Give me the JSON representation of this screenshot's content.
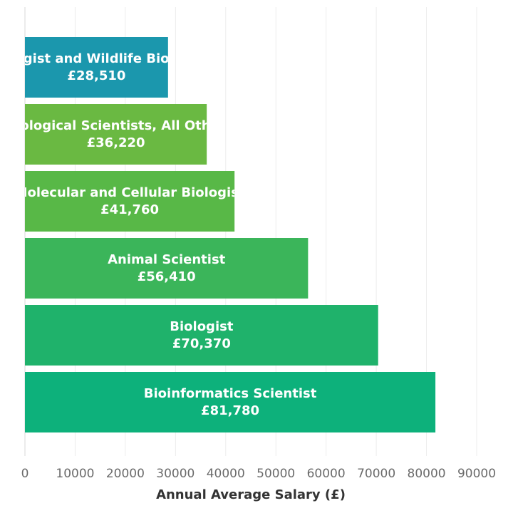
{
  "chart_data": {
    "type": "bar",
    "orientation": "horizontal",
    "categories": [
      "Zoologist and Wildlife Biologist",
      "Biological Scientists, All Other",
      "Molecular and Cellular Biologist",
      "Animal Scientist",
      "Biologist",
      "Bioinformatics Scientist"
    ],
    "values": [
      28510,
      36220,
      41760,
      56410,
      70370,
      81780
    ],
    "value_labels": [
      "£28,510",
      "£36,220",
      "£41,760",
      "£56,410",
      "£70,370",
      "£81,780"
    ],
    "colors": [
      "#1b97ad",
      "#6ab942",
      "#58b847",
      "#3bb55a",
      "#1fb26b",
      "#0db17b"
    ],
    "xlabel": "Annual Average Salary (£)",
    "ylabel": "",
    "xlim": [
      0,
      90000
    ],
    "xticks": [
      0,
      10000,
      20000,
      30000,
      40000,
      50000,
      60000,
      70000,
      80000,
      90000
    ],
    "xtick_labels": [
      "0",
      "10000",
      "20000",
      "30000",
      "40000",
      "50000",
      "60000",
      "70000",
      "80000",
      "90000"
    ],
    "grid": true,
    "legend": "none"
  }
}
